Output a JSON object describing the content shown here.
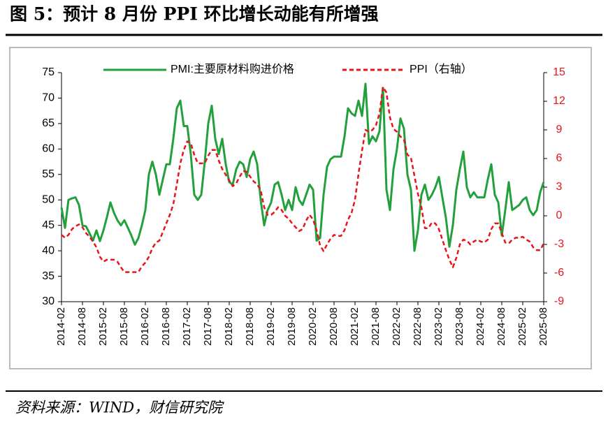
{
  "chart_data": {
    "type": "line",
    "title": "图 5：预计 8 月份 PPI 环比增长动能有所增强",
    "source": "资料来源：WIND，财信研究院",
    "categories": [
      "2014-02",
      null,
      null,
      null,
      null,
      null,
      "2014-08",
      null,
      null,
      null,
      null,
      null,
      "2015-02",
      null,
      null,
      null,
      null,
      null,
      "2015-08",
      null,
      null,
      null,
      null,
      null,
      "2016-02",
      null,
      null,
      null,
      null,
      null,
      "2016-08",
      null,
      null,
      null,
      null,
      null,
      "2017-02",
      null,
      null,
      null,
      null,
      null,
      "2017-08",
      null,
      null,
      null,
      null,
      null,
      "2018-02",
      null,
      null,
      null,
      null,
      null,
      "2018-08",
      null,
      null,
      null,
      null,
      null,
      "2019-02",
      null,
      null,
      null,
      null,
      null,
      "2019-08",
      null,
      null,
      null,
      null,
      null,
      "2020-02",
      null,
      null,
      null,
      null,
      null,
      "2020-08",
      null,
      null,
      null,
      null,
      null,
      "2021-02",
      null,
      null,
      null,
      null,
      null,
      "2021-08",
      null,
      null,
      null,
      null,
      null,
      "2022-02",
      null,
      null,
      null,
      null,
      null,
      "2022-08",
      null,
      null,
      null,
      null,
      null,
      "2023-02",
      null,
      null,
      null,
      null,
      null,
      "2023-08",
      null,
      null,
      null,
      null,
      null,
      "2024-02",
      null,
      null,
      null,
      null,
      null,
      "2024-08",
      null,
      null,
      null,
      null,
      null,
      "2025-02",
      null,
      null,
      null,
      null,
      null,
      "2025-08"
    ],
    "series": [
      {
        "name": "PMI:主要原材料购进价格",
        "color": "#22a03c",
        "dash": false,
        "values": [
          48.5,
          44.5,
          50,
          50.3,
          50.5,
          49,
          45,
          44.8,
          43.5,
          42,
          44,
          41.9,
          44,
          46.6,
          49.5,
          47.5,
          46,
          45,
          46,
          44.5,
          43,
          41.2,
          42.5,
          45,
          48,
          55,
          57.5,
          55,
          51,
          54,
          57,
          57,
          62,
          68,
          69.5,
          64.5,
          64.5,
          59,
          51,
          50,
          51,
          57.5,
          65,
          68.5,
          62,
          59,
          62,
          57,
          53.5,
          53,
          56,
          57.5,
          57,
          54.5,
          58,
          59.5,
          57,
          50,
          45,
          48,
          49.5,
          53,
          53.5,
          51,
          48,
          50,
          48,
          52.5,
          50,
          49,
          51,
          53,
          52,
          42,
          42.5,
          51,
          56.5,
          58,
          58.5,
          58.5,
          58.5,
          62.5,
          68,
          67,
          66.5,
          69.5,
          66.5,
          72.8,
          61,
          62.5,
          61.5,
          63.5,
          72,
          52,
          48,
          56,
          60,
          66,
          64,
          55,
          52,
          40,
          44,
          51,
          53,
          50,
          51,
          52.5,
          54.5,
          50.5,
          46.5,
          40.8,
          45,
          52,
          56,
          59.5,
          52.5,
          50.5,
          51.5,
          50.5,
          50.5,
          50.5,
          54,
          57,
          51,
          49.5,
          43,
          48,
          53.5,
          48,
          48.5,
          49,
          50,
          50.5,
          48,
          47,
          48,
          51.5,
          53.5
        ]
      },
      {
        "name": "PPI（右轴）",
        "color": "#e8141a",
        "dash": true,
        "axis": "y2",
        "values": [
          -2.0,
          -2.3,
          -2.0,
          -1.4,
          -1.1,
          -0.9,
          -1.2,
          -1.8,
          -2.2,
          -2.7,
          -3.3,
          -4.3,
          -4.8,
          -4.6,
          -4.6,
          -4.6,
          -4.8,
          -5.4,
          -5.9,
          -5.9,
          -5.9,
          -5.9,
          -5.9,
          -5.3,
          -4.9,
          -4.3,
          -3.4,
          -2.8,
          -2.6,
          -1.7,
          -0.8,
          0.1,
          1.2,
          3.3,
          5.5,
          6.9,
          7.8,
          7.6,
          6.4,
          5.5,
          5.5,
          5.5,
          6.3,
          6.9,
          6.9,
          5.8,
          4.9,
          4.3,
          3.7,
          3.1,
          3.4,
          4.1,
          4.7,
          4.6,
          4.1,
          3.6,
          3.3,
          2.7,
          0.9,
          0.1,
          0.1,
          0.4,
          0.9,
          0.6,
          0.0,
          -0.3,
          -0.8,
          -1.2,
          -1.6,
          -1.4,
          -0.5,
          0.1,
          -0.4,
          -1.5,
          -3.1,
          -3.7,
          -3.0,
          -2.4,
          -2.0,
          -2.1,
          -2.1,
          -1.5,
          -0.4,
          0.3,
          1.7,
          4.4,
          6.8,
          9.0,
          8.8,
          9.0,
          9.5,
          10.7,
          13.5,
          12.9,
          10.3,
          9.1,
          8.8,
          8.3,
          8.0,
          6.4,
          6.1,
          4.2,
          2.3,
          0.9,
          -1.3,
          -1.3,
          -0.7,
          -0.8,
          -1.4,
          -2.5,
          -3.6,
          -4.6,
          -5.4,
          -4.4,
          -3.0,
          -2.5,
          -2.6,
          -3.0,
          -2.7,
          -2.5,
          -2.7,
          -2.8,
          -2.5,
          -1.4,
          -0.8,
          -0.8,
          -1.8,
          -2.8,
          -2.9,
          -2.5,
          -2.3,
          -2.3,
          -2.2,
          -2.5,
          -2.7,
          -3.3,
          -3.6,
          -3.6,
          -2.9
        ]
      }
    ],
    "ylim": [
      30,
      75
    ],
    "yticks": [
      30,
      35,
      40,
      45,
      50,
      55,
      60,
      65,
      70,
      75
    ],
    "y2lim": [
      -9,
      15
    ],
    "y2ticks": [
      -9,
      -6,
      -3,
      0,
      3,
      6,
      9,
      12,
      15
    ],
    "y2_color": "#e8141a",
    "grid": false,
    "legend": "top"
  }
}
